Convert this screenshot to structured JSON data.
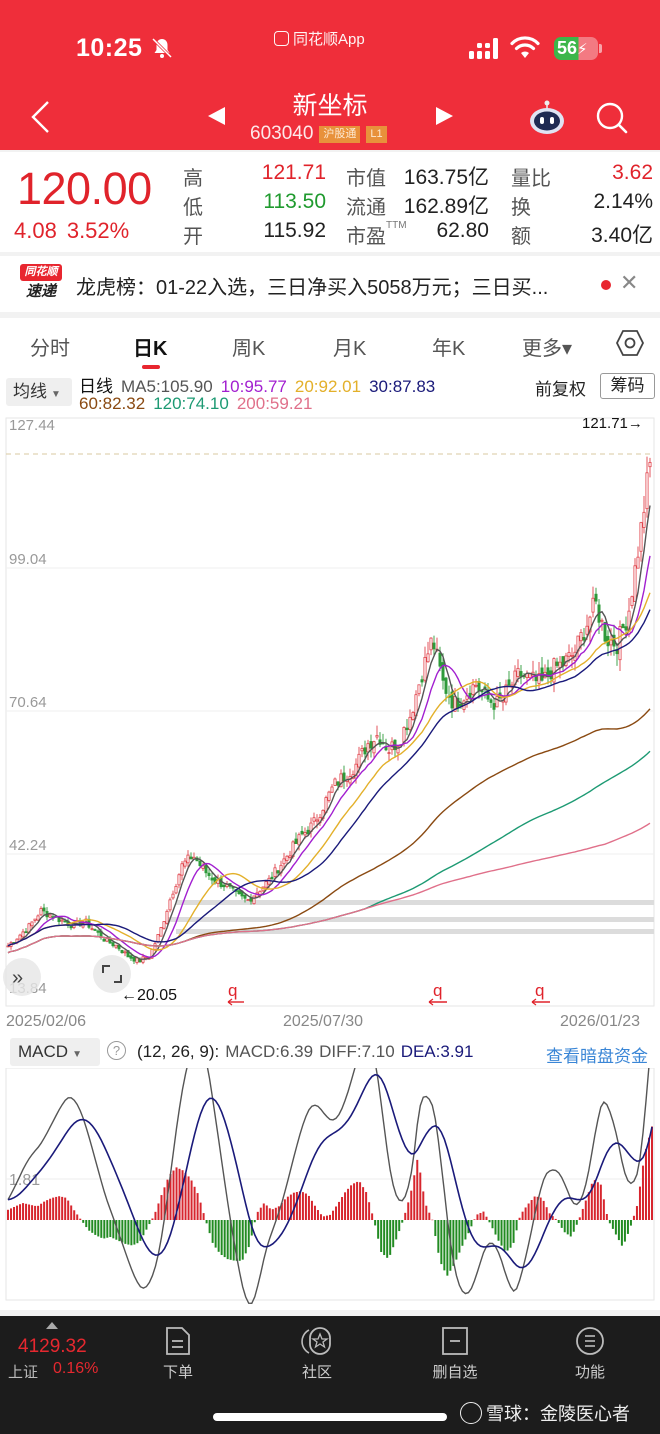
{
  "status_bar": {
    "time": "10:25",
    "app_badge": "同花顺App",
    "battery": "56"
  },
  "header": {
    "stock_name": "新坐标",
    "stock_code": "603040",
    "tags": [
      "沪股通",
      "L1"
    ],
    "bg_color": "#ef2e3a"
  },
  "quote": {
    "price": "120.00",
    "change": "4.08",
    "change_pct": "3.52%",
    "rows": [
      {
        "l1": "高",
        "v1": "121.71",
        "c1": "red",
        "l2": "市值",
        "v2": "163.75亿",
        "l3": "量比",
        "v3": "3.62",
        "c3": "red"
      },
      {
        "l1": "低",
        "v1": "113.50",
        "c1": "green",
        "l2": "流通",
        "v2": "162.89亿",
        "l3": "换",
        "v3": "2.14%",
        "c3": ""
      },
      {
        "l1": "开",
        "v1": "115.92",
        "c1": "",
        "l2": "市盈",
        "v2": "62.80",
        "l3": "额",
        "v3": "3.40亿",
        "c3": ""
      }
    ],
    "ttm_suffix": "TTM"
  },
  "news": {
    "logo_top": "同花顺",
    "logo_bottom": "速递",
    "text": "龙虎榜：01-22入选，三日净买入5058万元；三日买..."
  },
  "tabs": [
    {
      "label": "分时",
      "active": false
    },
    {
      "label": "日K",
      "active": true
    },
    {
      "label": "周K",
      "active": false
    },
    {
      "label": "月K",
      "active": false
    },
    {
      "label": "年K",
      "active": false
    },
    {
      "label": "更多▾",
      "active": false
    }
  ],
  "ma_panel": {
    "selector": "均线",
    "period_label": "日线",
    "items_row1": [
      {
        "text": "MA5:105.90",
        "color": "#555555"
      },
      {
        "text": "10:95.77",
        "color": "#a21fd0"
      },
      {
        "text": "20:92.01",
        "color": "#e3b02a"
      },
      {
        "text": "30:87.83",
        "color": "#1a1a7a"
      }
    ],
    "items_row2": [
      {
        "text": "60:82.32",
        "color": "#8a4a12"
      },
      {
        "text": "120:74.10",
        "color": "#1d9a73"
      },
      {
        "text": "200:59.21",
        "color": "#e0708a"
      }
    ],
    "adjust": "前复权",
    "chips_button": "筹码"
  },
  "chart_data": {
    "type": "candlestick",
    "title": "新坐标 603040 日K",
    "y_ticks": [
      "127.44",
      "99.04",
      "70.64",
      "42.24",
      "13.84"
    ],
    "y_range": [
      13.84,
      127.44
    ],
    "x_labels": [
      "2025/02/06",
      "2025/07/30",
      "2026/01/23"
    ],
    "max_label": "121.71→",
    "min_label": "←20.05",
    "max_value": 121.71,
    "min_value": 20.05,
    "close_trend": [
      24,
      26,
      28,
      31,
      30,
      29,
      28,
      29,
      27,
      25,
      24,
      22,
      21,
      22,
      27,
      34,
      40,
      42,
      39,
      37,
      36,
      34,
      33,
      35,
      37,
      40,
      43,
      46,
      48,
      52,
      56,
      58,
      60,
      64,
      66,
      63,
      65,
      70,
      78,
      85,
      76,
      72,
      74,
      76,
      73,
      72,
      75,
      78,
      77,
      76,
      79,
      80,
      82,
      87,
      92,
      85,
      84,
      90,
      104,
      120
    ],
    "ma_series": [
      {
        "name": "MA5",
        "color": "#555555",
        "last": 105.9
      },
      {
        "name": "MA10",
        "color": "#a21fd0",
        "last": 95.77
      },
      {
        "name": "MA20",
        "color": "#e3b02a",
        "last": 92.01
      },
      {
        "name": "MA30",
        "color": "#1a1a7a",
        "last": 87.83
      },
      {
        "name": "MA60",
        "color": "#8a4a12",
        "last": 82.32
      },
      {
        "name": "MA120",
        "color": "#1d9a73",
        "last": 74.1
      },
      {
        "name": "MA200",
        "color": "#e0708a",
        "last": 59.21
      }
    ],
    "macd": {
      "params": "(12, 26, 9):",
      "MACD": 6.39,
      "DIFF": 7.1,
      "DEA": 3.91,
      "y_tick": "1.81",
      "hist": [
        0.6,
        0.8,
        1.0,
        0.9,
        0.8,
        1.1,
        1.3,
        1.4,
        1.3,
        0.6,
        0,
        -0.6,
        -0.9,
        -1.1,
        -1.0,
        -1.2,
        -1.4,
        -1.5,
        -1.3,
        -0.5,
        0.3,
        1.5,
        2.6,
        3.1,
        2.9,
        2.4,
        1.5,
        0,
        -1.4,
        -2.0,
        -2.3,
        -2.4,
        -2.4,
        -1.5,
        0.4,
        1.0,
        0.6,
        0.8,
        1.3,
        1.6,
        1.7,
        1.5,
        0.8,
        0.2,
        0.3,
        0.9,
        1.6,
        2.1,
        2.3,
        1.6,
        0,
        -1.9,
        -2.3,
        -1.2,
        0,
        1.5,
        3.7,
        1.0,
        0,
        -2.4,
        -3.3,
        -2.6,
        -1.6,
        -0.7,
        0.3,
        0.5,
        -0.3,
        -1.2,
        -1.9,
        -1.5,
        0.3,
        0.9,
        1.4,
        1.3,
        0.4,
        0,
        -0.7,
        -1.0,
        0,
        1.2,
        2.4,
        2.1,
        0,
        -0.8,
        -1.6,
        -0.5,
        0.9,
        3.9,
        5.5
      ],
      "hist_note": "approximate bar shape, red above 0 / green below"
    }
  },
  "macd_panel": {
    "selector": "MACD",
    "params": "(12, 26, 9):",
    "macd_text": "MACD:6.39",
    "diff_text": "DIFF:7.10",
    "dea_text": "DEA:3.91",
    "link": "查看暗盘资金"
  },
  "bottom_bar": {
    "index_value": "4129.32",
    "index_name": "上证",
    "index_pct": "0.16%",
    "nav": [
      {
        "label": "下单",
        "icon": "order-doc-icon"
      },
      {
        "label": "社区",
        "icon": "community-star-icon"
      },
      {
        "label": "删自选",
        "icon": "remove-watchlist-icon"
      },
      {
        "label": "功能",
        "icon": "menu-circle-icon"
      }
    ],
    "watermark": "雪球：金陵医心者"
  }
}
